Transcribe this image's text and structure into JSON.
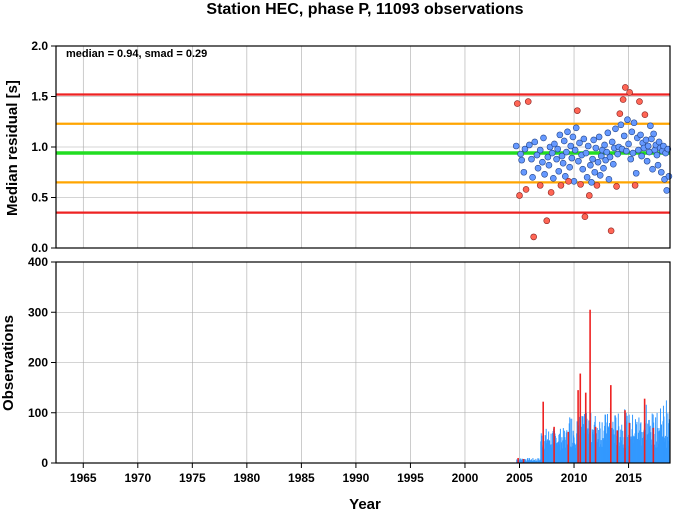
{
  "title": "Station HEC, phase P, 11093 observations",
  "colors": {
    "median_line": "#22dd22",
    "inner_band": "#ffa500",
    "outer_band": "#ee2222",
    "point_normal": "#6699ff",
    "point_outlier": "#ff6655",
    "bar_normal": "#3399ff",
    "bar_highlight": "#ee2222",
    "grid": "#aaaaaa"
  },
  "chart_data": [
    {
      "type": "scatter",
      "annotation": "median = 0.94, smad = 0.29",
      "xlabel": "",
      "ylabel": "Median residual [s]",
      "xlim": [
        1962.5,
        2018.8
      ],
      "ylim": [
        0.0,
        2.0
      ],
      "yticks": [
        "0.0",
        "0.5",
        "1.0",
        "1.5",
        "2.0"
      ],
      "grid": true,
      "horizontal_lines": [
        {
          "value": 0.94,
          "role": "median"
        },
        {
          "value": 0.65,
          "role": "lower 1 smad"
        },
        {
          "value": 1.23,
          "role": "upper 1 smad"
        },
        {
          "value": 0.35,
          "role": "lower 2 smad"
        },
        {
          "value": 1.52,
          "role": "upper 2 smad"
        }
      ],
      "outliers": [
        [
          2004.8,
          1.43
        ],
        [
          2005.8,
          1.45
        ],
        [
          2005.0,
          0.52
        ],
        [
          2005.6,
          0.58
        ],
        [
          2006.3,
          0.11
        ],
        [
          2006.9,
          0.62
        ],
        [
          2007.5,
          0.27
        ],
        [
          2007.9,
          0.55
        ],
        [
          2008.8,
          0.62
        ],
        [
          2009.5,
          0.66
        ],
        [
          2010.3,
          1.36
        ],
        [
          2011.0,
          0.31
        ],
        [
          2011.4,
          0.52
        ],
        [
          2012.1,
          0.62
        ],
        [
          2013.4,
          0.17
        ],
        [
          2014.2,
          1.33
        ],
        [
          2014.5,
          1.47
        ],
        [
          2014.7,
          1.59
        ],
        [
          2015.1,
          1.54
        ],
        [
          2016.0,
          1.45
        ],
        [
          2016.5,
          1.32
        ],
        [
          2015.6,
          0.62
        ],
        [
          2010.6,
          0.63
        ],
        [
          2013.9,
          0.61
        ]
      ],
      "points": [
        [
          2004.7,
          1.01
        ],
        [
          2005.1,
          0.93
        ],
        [
          2005.2,
          0.87
        ],
        [
          2005.4,
          0.75
        ],
        [
          2005.5,
          0.98
        ],
        [
          2005.9,
          1.02
        ],
        [
          2006.1,
          0.88
        ],
        [
          2006.2,
          0.7
        ],
        [
          2006.4,
          1.05
        ],
        [
          2006.6,
          0.92
        ],
        [
          2006.7,
          0.79
        ],
        [
          2006.9,
          0.97
        ],
        [
          2007.1,
          0.85
        ],
        [
          2007.2,
          1.09
        ],
        [
          2007.3,
          0.73
        ],
        [
          2007.6,
          0.9
        ],
        [
          2007.7,
          0.82
        ],
        [
          2007.8,
          1.0
        ],
        [
          2008.0,
          0.94
        ],
        [
          2008.1,
          0.69
        ],
        [
          2008.2,
          1.03
        ],
        [
          2008.4,
          0.88
        ],
        [
          2008.5,
          0.98
        ],
        [
          2008.6,
          0.76
        ],
        [
          2008.7,
          1.12
        ],
        [
          2008.9,
          0.91
        ],
        [
          2009.0,
          0.84
        ],
        [
          2009.1,
          1.06
        ],
        [
          2009.2,
          0.71
        ],
        [
          2009.3,
          0.95
        ],
        [
          2009.4,
          1.15
        ],
        [
          2009.6,
          0.8
        ],
        [
          2009.7,
          1.01
        ],
        [
          2009.8,
          0.89
        ],
        [
          2009.9,
          1.1
        ],
        [
          2010.0,
          0.66
        ],
        [
          2010.1,
          0.97
        ],
        [
          2010.2,
          1.19
        ],
        [
          2010.4,
          0.86
        ],
        [
          2010.5,
          1.04
        ],
        [
          2010.7,
          0.92
        ],
        [
          2010.8,
          0.78
        ],
        [
          2010.9,
          1.08
        ],
        [
          2011.1,
          0.94
        ],
        [
          2011.2,
          0.7
        ],
        [
          2011.3,
          1.01
        ],
        [
          2011.5,
          0.82
        ],
        [
          2011.6,
          0.65
        ],
        [
          2011.7,
          0.88
        ],
        [
          2011.8,
          1.07
        ],
        [
          2011.9,
          0.75
        ],
        [
          2012.0,
          0.99
        ],
        [
          2012.2,
          0.85
        ],
        [
          2012.3,
          1.1
        ],
        [
          2012.4,
          0.72
        ],
        [
          2012.5,
          0.91
        ],
        [
          2012.6,
          0.97
        ],
        [
          2012.7,
          0.79
        ],
        [
          2012.8,
          1.02
        ],
        [
          2012.9,
          0.87
        ],
        [
          2013.0,
          0.95
        ],
        [
          2013.1,
          1.14
        ],
        [
          2013.2,
          0.68
        ],
        [
          2013.3,
          0.9
        ],
        [
          2013.5,
          1.05
        ],
        [
          2013.6,
          0.83
        ],
        [
          2013.7,
          0.99
        ],
        [
          2013.8,
          1.18
        ],
        [
          2014.0,
          0.93
        ],
        [
          2014.1,
          1.0
        ],
        [
          2014.3,
          1.22
        ],
        [
          2014.4,
          0.98
        ],
        [
          2014.6,
          1.11
        ],
        [
          2014.8,
          0.96
        ],
        [
          2014.9,
          1.27
        ],
        [
          2015.0,
          1.03
        ],
        [
          2015.2,
          0.88
        ],
        [
          2015.3,
          1.15
        ],
        [
          2015.4,
          0.94
        ],
        [
          2015.5,
          1.24
        ],
        [
          2015.7,
          0.74
        ],
        [
          2015.8,
          1.09
        ],
        [
          2015.9,
          0.97
        ],
        [
          2016.1,
          1.12
        ],
        [
          2016.2,
          0.91
        ],
        [
          2016.3,
          1.04
        ],
        [
          2016.4,
          0.99
        ],
        [
          2016.6,
          1.07
        ],
        [
          2016.7,
          0.86
        ],
        [
          2016.8,
          1.01
        ],
        [
          2016.9,
          0.95
        ],
        [
          2017.0,
          1.21
        ],
        [
          2017.1,
          1.08
        ],
        [
          2017.2,
          0.78
        ],
        [
          2017.3,
          1.13
        ],
        [
          2017.4,
          0.97
        ],
        [
          2017.5,
          1.02
        ],
        [
          2017.6,
          0.92
        ],
        [
          2017.7,
          0.82
        ],
        [
          2017.8,
          1.05
        ],
        [
          2017.9,
          0.99
        ],
        [
          2018.0,
          0.75
        ],
        [
          2018.1,
          0.96
        ],
        [
          2018.2,
          1.01
        ],
        [
          2018.3,
          0.68
        ],
        [
          2018.4,
          0.94
        ],
        [
          2018.5,
          0.57
        ],
        [
          2018.6,
          0.98
        ],
        [
          2018.7,
          0.71
        ]
      ]
    },
    {
      "type": "bar",
      "xlabel": "Year",
      "ylabel": "Observations",
      "xlim": [
        1962.5,
        2018.8
      ],
      "ylim": [
        0,
        400
      ],
      "xticks": [
        "1965",
        "1970",
        "1975",
        "1980",
        "1985",
        "1990",
        "1995",
        "2000",
        "2005",
        "2010",
        "2015"
      ],
      "yticks": [
        "0",
        "100",
        "200",
        "300",
        "400"
      ],
      "grid": true,
      "highlight_bars": [
        [
          2004.8,
          10
        ],
        [
          2005.3,
          8
        ],
        [
          2007.1,
          122
        ],
        [
          2008.1,
          72
        ],
        [
          2009.4,
          62
        ],
        [
          2010.3,
          145
        ],
        [
          2010.5,
          178
        ],
        [
          2011.0,
          140
        ],
        [
          2011.4,
          305
        ],
        [
          2011.9,
          72
        ],
        [
          2013.3,
          155
        ],
        [
          2013.9,
          65
        ],
        [
          2014.6,
          105
        ],
        [
          2015.0,
          80
        ],
        [
          2016.4,
          128
        ],
        [
          2017.2,
          70
        ]
      ]
    }
  ]
}
